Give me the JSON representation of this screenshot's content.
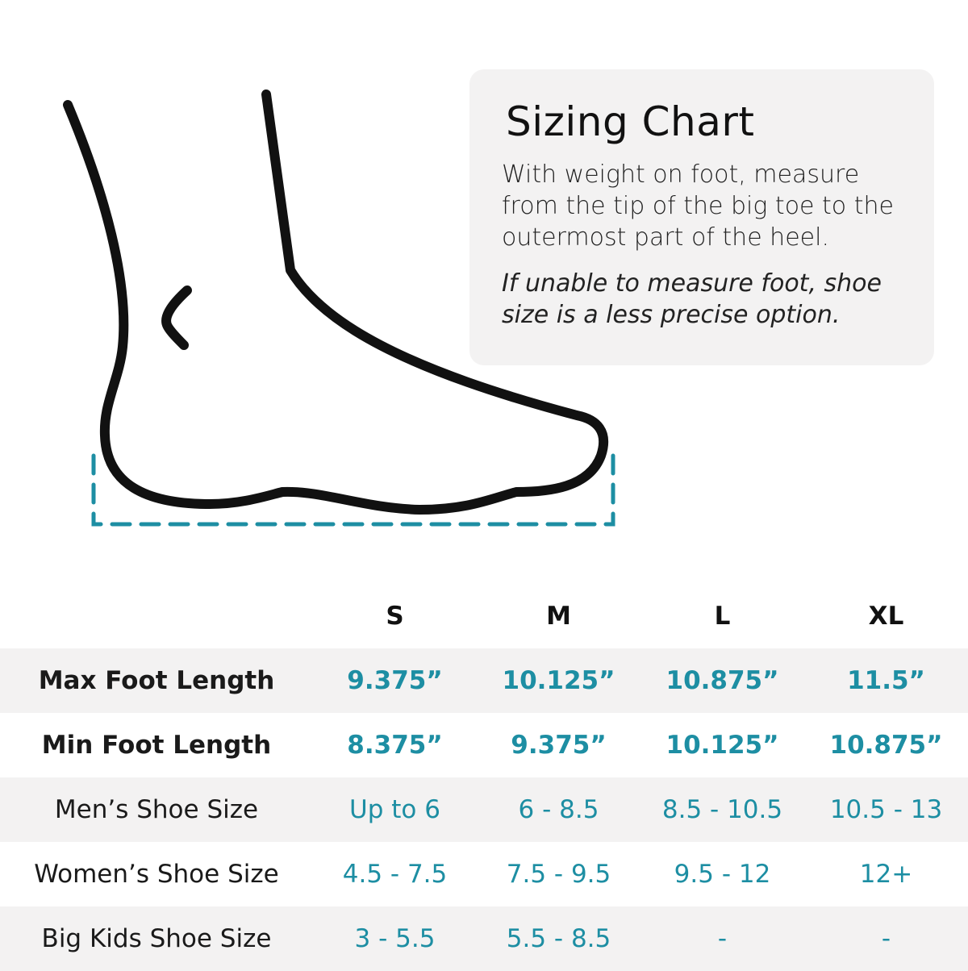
{
  "info": {
    "title": "Sizing Chart",
    "instruction_lines": [
      "With weight on foot, measure",
      "from the tip of the big toe to the",
      "outermost part of the heel."
    ],
    "note_lines": [
      "If unable to measure foot, shoe",
      "size is a less precise option."
    ]
  },
  "table": {
    "columns": [
      "S",
      "M",
      "L",
      "XL"
    ],
    "rows": [
      {
        "label": "Max Foot Length",
        "values": [
          "9.375”",
          "10.125”",
          "10.875”",
          "11.5”"
        ]
      },
      {
        "label": "Min Foot Length",
        "values": [
          "8.375”",
          "9.375”",
          "10.125”",
          "10.875”"
        ]
      },
      {
        "label": "Men’s Shoe Size",
        "values": [
          "Up to 6",
          "6 - 8.5",
          "8.5 - 10.5",
          "10.5 - 13"
        ]
      },
      {
        "label": "Women’s Shoe Size",
        "values": [
          "4.5 - 7.5",
          "7.5 - 9.5",
          "9.5 - 12",
          "12+"
        ]
      },
      {
        "label": "Big Kids Shoe Size",
        "values": [
          "3 - 5.5",
          "5.5 - 8.5",
          "-",
          "-"
        ]
      }
    ]
  },
  "colors": {
    "accent": "#1d8ea3",
    "panel": "#f3f2f2",
    "outline": "#111111"
  }
}
